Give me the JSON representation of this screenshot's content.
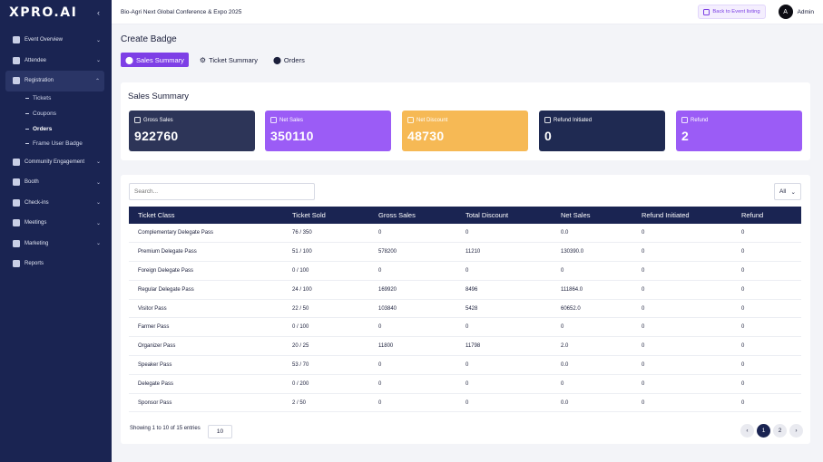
{
  "app": {
    "logo": "XPRO.AI",
    "collapse_glyph": "‹"
  },
  "sidebar": {
    "items": [
      {
        "label": "Event Overview",
        "icon": "home-icon",
        "chevron": "⌄"
      },
      {
        "label": "Attendee",
        "icon": "user-icon",
        "chevron": "⌄"
      },
      {
        "label": "Registration",
        "icon": "clipboard-icon",
        "chevron": "⌃"
      }
    ],
    "sub_items": [
      {
        "label": "Tickets"
      },
      {
        "label": "Coupons"
      },
      {
        "label": "Orders"
      },
      {
        "label": "Frame User Badge"
      }
    ],
    "items_after": [
      {
        "label": "Community Engagement",
        "icon": "community-icon",
        "chevron": "⌄"
      },
      {
        "label": "Booth",
        "icon": "booth-icon",
        "chevron": "⌄"
      },
      {
        "label": "Check-ins",
        "icon": "check-shield-icon",
        "chevron": "⌄"
      },
      {
        "label": "Meetings",
        "icon": "meetings-icon",
        "chevron": "⌄"
      },
      {
        "label": "Marketing",
        "icon": "marketing-icon",
        "chevron": "⌄"
      },
      {
        "label": "Reports",
        "icon": "reports-icon",
        "chevron": ""
      }
    ]
  },
  "header": {
    "event_title": "Bio-Agri Next Global Conference & Expo 2025",
    "back_label": "Back to Event listing",
    "avatar_letter": "A",
    "user_name": "Admin"
  },
  "page": {
    "title": "Create Badge",
    "tabs": [
      {
        "label": "Sales Summary",
        "icon": "pin-icon",
        "glyph": "⬤"
      },
      {
        "label": "Ticket Summary",
        "icon": "gear-icon",
        "glyph": "⚙"
      },
      {
        "label": "Orders",
        "icon": "location-icon",
        "glyph": "⬤"
      }
    ]
  },
  "summary": {
    "title": "Sales Summary",
    "stats": [
      {
        "label": "Gross Sales",
        "value": "922760",
        "color": "#2d3558"
      },
      {
        "label": "Net Sales",
        "value": "350110",
        "color": "#9b5cf6"
      },
      {
        "label": "Net Discount",
        "value": "48730",
        "color": "#f6b955"
      },
      {
        "label": "Refund Initiated",
        "value": "0",
        "color": "#1f2a52"
      },
      {
        "label": "Refund",
        "value": "2",
        "color": "#9b5cf6"
      }
    ]
  },
  "table": {
    "search_placeholder": "Search...",
    "filter_value": "All",
    "columns": [
      "Ticket Class",
      "Ticket Sold",
      "Gross Sales",
      "Total Discount",
      "Net Sales",
      "Refund Initiated",
      "Refund"
    ],
    "rows": [
      [
        "Complementary Delegate Pass",
        "76 / 350",
        "0",
        "0",
        "0.0",
        "0",
        "0"
      ],
      [
        "Premium Delegate Pass",
        "51 / 100",
        "578200",
        "11210",
        "130390.0",
        "0",
        "0"
      ],
      [
        "Foreign Delegate Pass",
        "0 / 100",
        "0",
        "0",
        "0",
        "0",
        "0"
      ],
      [
        "Regular Delegate Pass",
        "24 / 100",
        "169920",
        "8496",
        "111864.0",
        "0",
        "0"
      ],
      [
        "Visitor Pass",
        "22 / 50",
        "103840",
        "5428",
        "60652.0",
        "0",
        "0"
      ],
      [
        "Farmer Pass",
        "0 / 100",
        "0",
        "0",
        "0",
        "0",
        "0"
      ],
      [
        "Organizer Pass",
        "20 / 25",
        "11800",
        "11798",
        "2.0",
        "0",
        "0"
      ],
      [
        "Speaker Pass",
        "53 / 70",
        "0",
        "0",
        "0.0",
        "0",
        "0"
      ],
      [
        "Delegate Pass",
        "0 / 200",
        "0",
        "0",
        "0",
        "0",
        "0"
      ],
      [
        "Sponsor Pass",
        "2 / 50",
        "0",
        "0",
        "0.0",
        "0",
        "0"
      ]
    ],
    "footer_text": "Showing 1 to 10 of 15 entries",
    "page_size": "10",
    "pages": [
      "‹",
      "1",
      "2",
      "›"
    ],
    "current_page": "1"
  }
}
